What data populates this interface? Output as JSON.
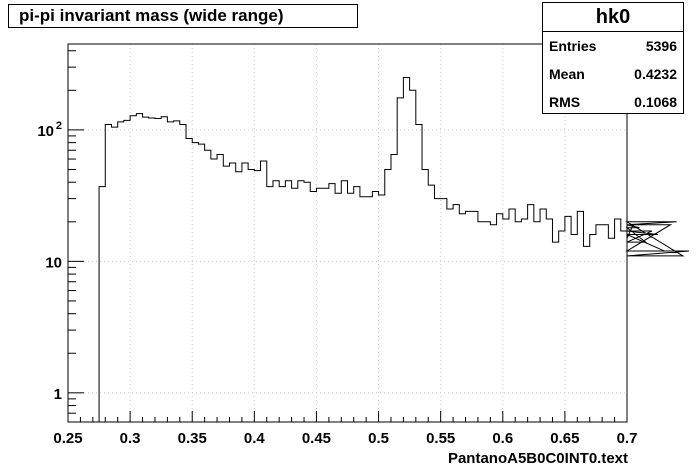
{
  "chart_data": {
    "type": "histogram",
    "title": "pi-pi invariant mass (wide range)",
    "xlabel": "PantanoA5B0C0INT0.text",
    "ylabel": "",
    "xlim": [
      0.25,
      0.7
    ],
    "ylim": [
      0.6,
      450
    ],
    "log_y": true,
    "grid": true,
    "x_ticks": [
      "0.25",
      "0.3",
      "0.35",
      "0.4",
      "0.45",
      "0.5",
      "0.55",
      "0.6",
      "0.65",
      "0.7"
    ],
    "x_tick_values": [
      0.25,
      0.3,
      0.35,
      0.4,
      0.45,
      0.5,
      0.55,
      0.6,
      0.65,
      0.7
    ],
    "y_ticks": [
      {
        "value": 1,
        "label": "1"
      },
      {
        "value": 10,
        "label": "10"
      },
      {
        "value": 100,
        "label": "10",
        "exponent": "2"
      }
    ],
    "bin_width": 0.005,
    "bin_edges_start": 0.275,
    "values": [
      37,
      110,
      105,
      115,
      118,
      128,
      133,
      125,
      123,
      122,
      126,
      115,
      117,
      110,
      86,
      80,
      78,
      70,
      60,
      65,
      53,
      56,
      48,
      56,
      50,
      49,
      58,
      37,
      41,
      37,
      41,
      36,
      41,
      40,
      34,
      36,
      36,
      39,
      33,
      41,
      33,
      37,
      31,
      31,
      34,
      32,
      50,
      65,
      175,
      250,
      200,
      110,
      50,
      38,
      30,
      30,
      25,
      27,
      23,
      24,
      24,
      20,
      20,
      19,
      23,
      21,
      25,
      20,
      21,
      27,
      20,
      25,
      21,
      14,
      17,
      22,
      16,
      24,
      13,
      16,
      19,
      19,
      15,
      21,
      17,
      15,
      19,
      18,
      14,
      17,
      16,
      12,
      19,
      20,
      11,
      12
    ]
  },
  "stats": {
    "name": "hk0",
    "rows": [
      {
        "key": "Entries",
        "value": "5396"
      },
      {
        "key": "Mean",
        "value": "0.4232"
      },
      {
        "key": "RMS",
        "value": "0.1068"
      }
    ]
  }
}
